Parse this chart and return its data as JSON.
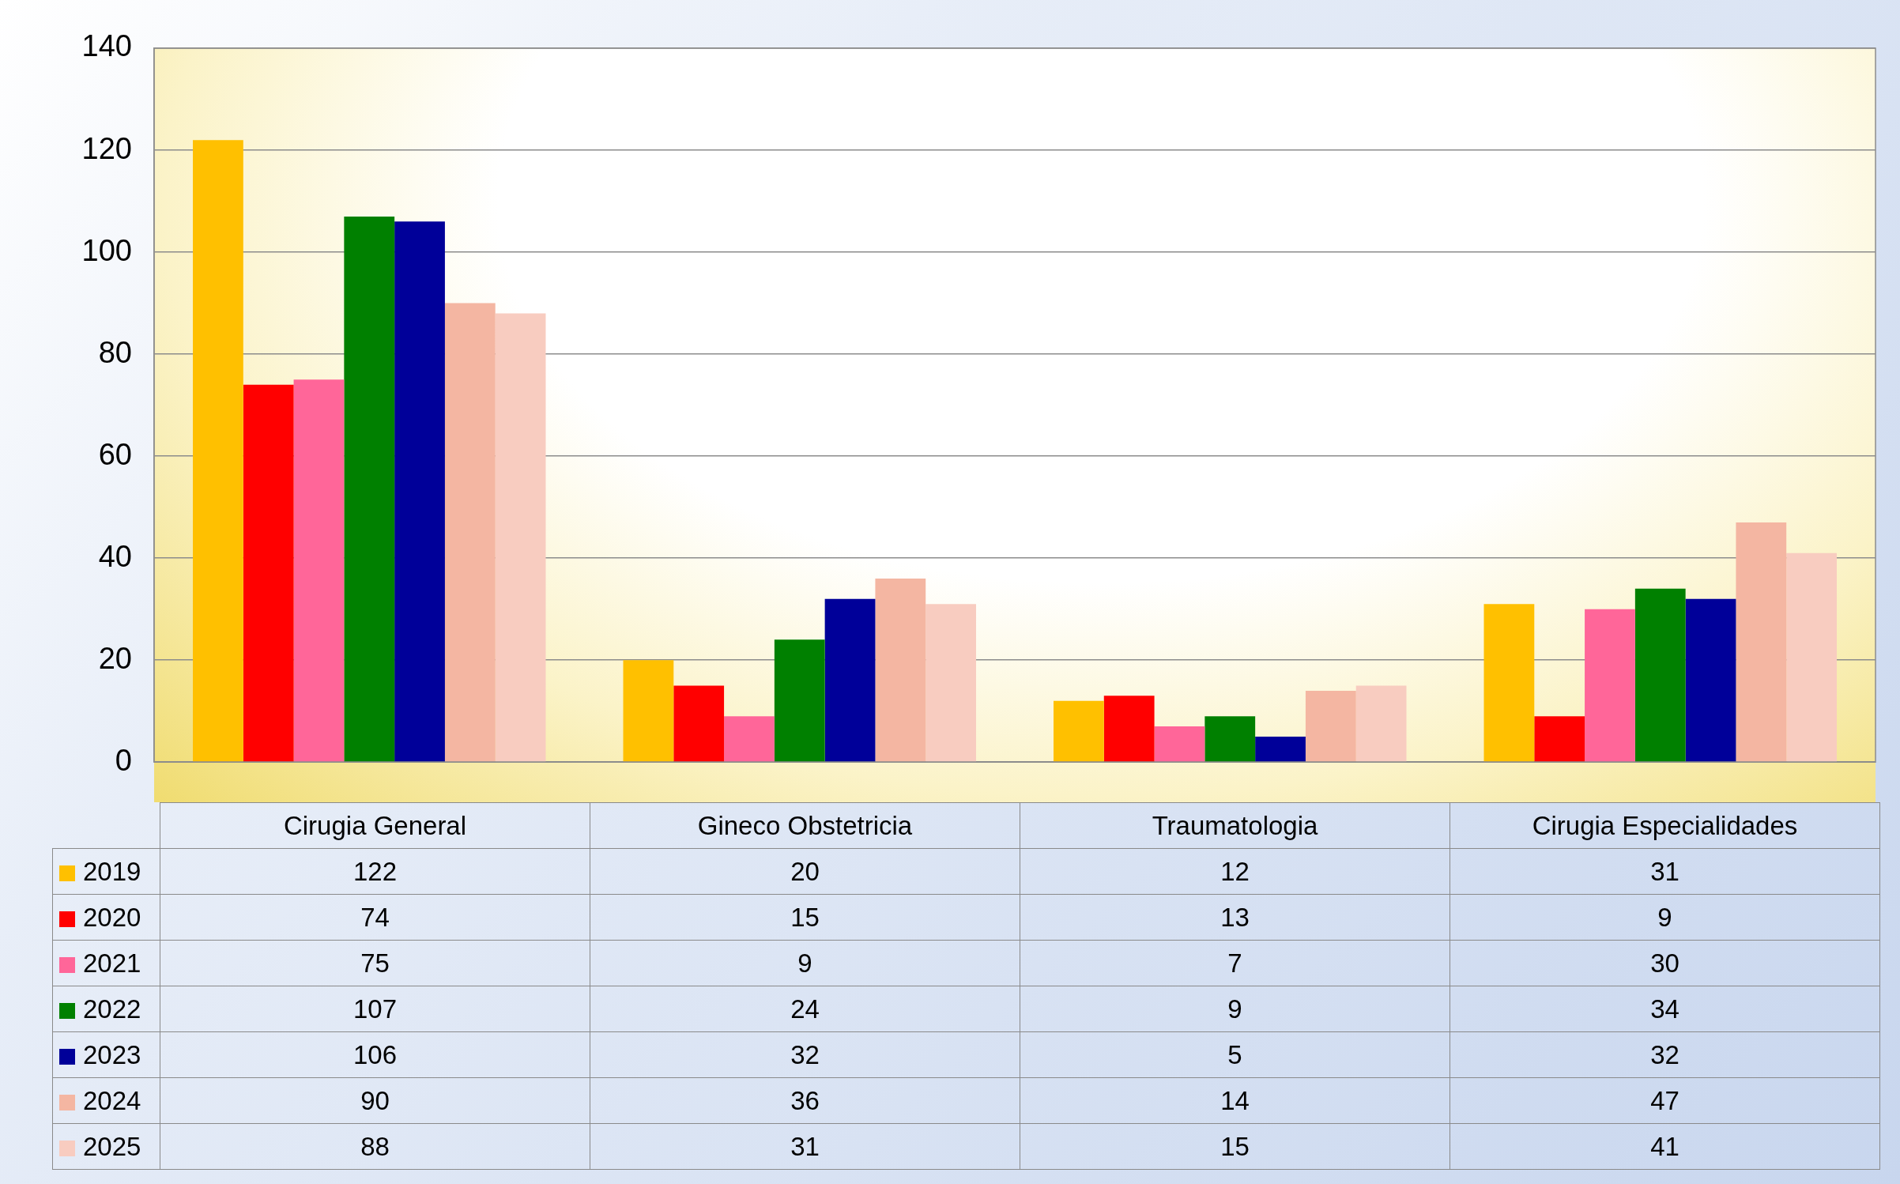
{
  "chart_data": {
    "type": "bar",
    "categories": [
      "Cirugia General",
      "Gineco Obstetricia",
      "Traumatologia",
      "Cirugia Especialidades"
    ],
    "series": [
      {
        "name": "2019",
        "color": "#ffc000",
        "values": [
          122,
          20,
          12,
          31
        ]
      },
      {
        "name": "2020",
        "color": "#ff0000",
        "values": [
          74,
          15,
          13,
          9
        ]
      },
      {
        "name": "2021",
        "color": "#ff6699",
        "values": [
          75,
          9,
          7,
          30
        ]
      },
      {
        "name": "2022",
        "color": "#008000",
        "values": [
          107,
          24,
          9,
          34
        ]
      },
      {
        "name": "2023",
        "color": "#000099",
        "values": [
          106,
          32,
          5,
          32
        ]
      },
      {
        "name": "2024",
        "color": "#f4b6a2",
        "values": [
          90,
          36,
          14,
          47
        ]
      },
      {
        "name": "2025",
        "color": "#f8ccc0",
        "values": [
          88,
          31,
          15,
          41
        ]
      }
    ],
    "ylim": [
      0,
      140
    ],
    "yticks": [
      0,
      20,
      40,
      60,
      80,
      100,
      120,
      140
    ],
    "grid": "y",
    "legend": "bottom",
    "data_labels": true
  }
}
